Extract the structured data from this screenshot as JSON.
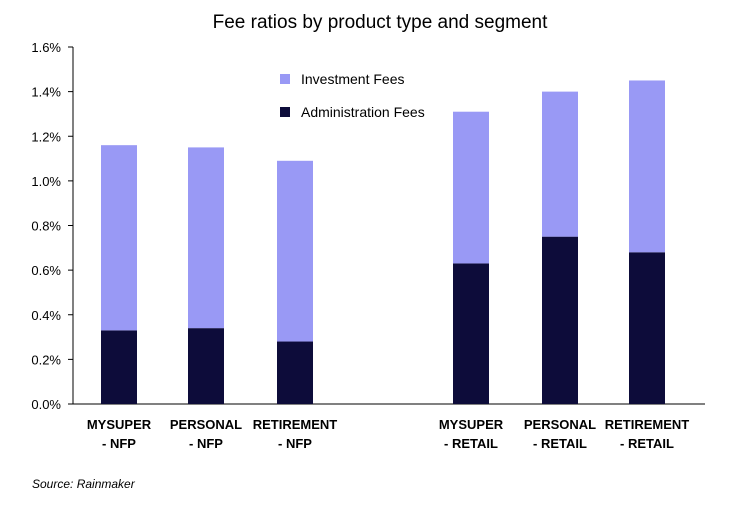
{
  "chart_data": {
    "type": "bar",
    "stacked": true,
    "title": "Fee ratios by product type and segment",
    "categories": [
      [
        "MYSUPER",
        "- NFP"
      ],
      [
        "PERSONAL",
        "- NFP"
      ],
      [
        "RETIREMENT",
        "- NFP"
      ],
      [
        "MYSUPER",
        "- RETAIL"
      ],
      [
        "PERSONAL",
        "- RETAIL"
      ],
      [
        "RETIREMENT",
        "- RETAIL"
      ]
    ],
    "series": [
      {
        "name": "Administration Fees",
        "color": "#0d0c3a",
        "values": [
          0.33,
          0.34,
          0.28,
          0.63,
          0.75,
          0.68
        ]
      },
      {
        "name": "Investment Fees",
        "color": "#9999f5",
        "values": [
          0.83,
          0.81,
          0.81,
          0.68,
          0.65,
          0.77
        ]
      }
    ],
    "y_ticks": [
      "0.0%",
      "0.2%",
      "0.4%",
      "0.6%",
      "0.8%",
      "1.0%",
      "1.2%",
      "1.4%",
      "1.6%"
    ],
    "ylim": [
      0,
      1.6
    ],
    "legend": [
      {
        "label": "Investment Fees",
        "color": "#9999f5"
      },
      {
        "label": "Administration Fees",
        "color": "#0d0c3a"
      }
    ],
    "legend_position": "top-center",
    "grid": false
  },
  "source": "Source: Rainmaker"
}
